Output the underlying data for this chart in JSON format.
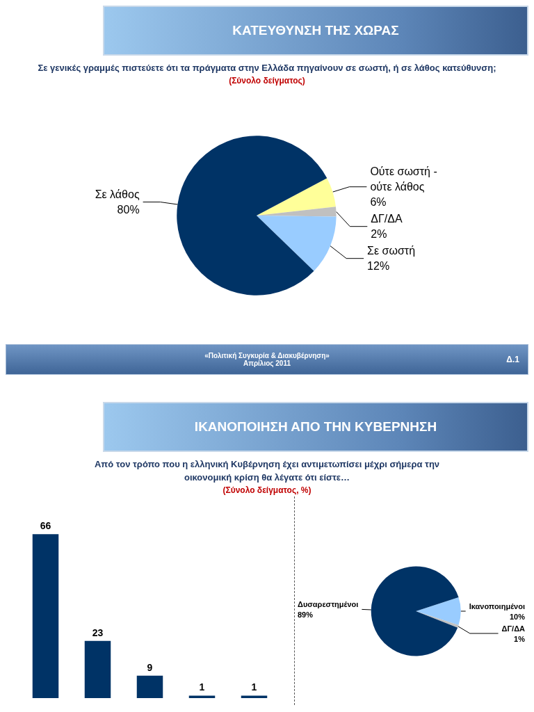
{
  "chart_data": [
    {
      "type": "pie",
      "title": "ΚΑΤΕΥΘΥΝΣΗ ΤΗΣ ΧΩΡΑΣ",
      "subtitle": "Σε γενικές γραμμές πιστεύετε ότι τα πράγματα στην Ελλάδα πηγαίνουν σε σωστή, ή σε λάθος κατεύθυνση;",
      "annotations": [
        "(Σύνολο δείγματος)",
        "«Πολιτική Συγκυρία & Διακυβέρνηση»",
        "Απρίλιος 2011",
        "Δ.1"
      ],
      "categories": [
        "Ούτε σωστή - ούτε λάθος",
        "ΔΓ/ΔΑ",
        "Σε σωστή",
        "Σε λάθος"
      ],
      "values": [
        6,
        2,
        12,
        80
      ],
      "value_labels": [
        "6%",
        "2%",
        "12%",
        "80%"
      ],
      "colors": [
        "#ffff99",
        "#c0c0c0",
        "#99ccff",
        "#003366"
      ]
    },
    {
      "type": "bar",
      "title": "ΙΚΑΝΟΠΟΙΗΣΗ ΑΠΟ ΤΗΝ ΚΥΒΕΡΝΗΣΗ",
      "subtitle": "Από τον τρόπο που η ελληνική Κυβέρνηση έχει αντιμετωπίσει μέχρι σήμερα την οικονομική κρίση θα λέγατε ότι είστε…",
      "annotations": [
        "(Σύνολο δείγματος, %)"
      ],
      "categories": [
        null,
        null,
        null,
        null,
        null
      ],
      "values": [
        66,
        23,
        9,
        1,
        1
      ],
      "color": "#003366",
      "data_labels": true
    },
    {
      "type": "pie",
      "categories": [
        "Ικανοποιημένοι",
        "ΔΓ/ΔΑ",
        "Δυσαρεστημένοι"
      ],
      "values": [
        10,
        1,
        89
      ],
      "value_labels": [
        "10%",
        "1%",
        "89%"
      ],
      "colors": [
        "#99ccff",
        "#c0c0c0",
        "#003366"
      ]
    }
  ]
}
